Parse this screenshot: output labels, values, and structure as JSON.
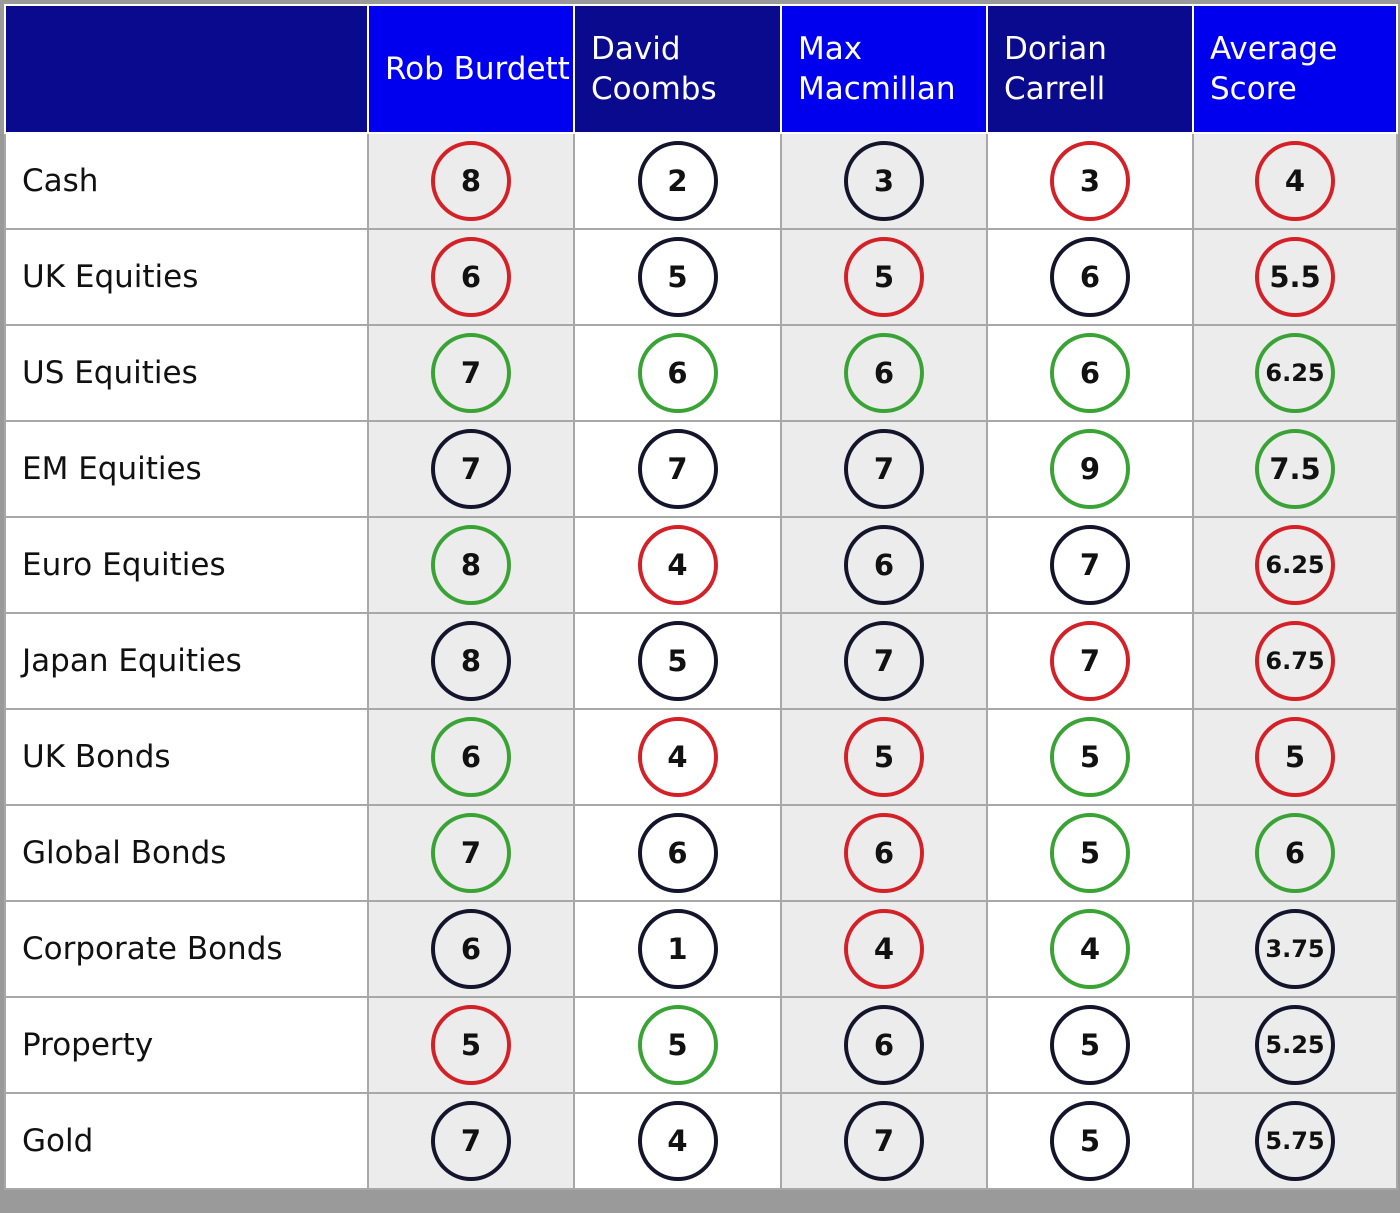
{
  "table": {
    "columns": [
      "Rob Burdett",
      "David Coombs",
      "Max Macmillan",
      "Dorian Carrell",
      "Average Score"
    ],
    "rows": [
      {
        "label": "Cash",
        "cells": [
          {
            "value": 8,
            "color": "#d42027"
          },
          {
            "value": 2,
            "color": "#14142b"
          },
          {
            "value": 3,
            "color": "#14142b"
          },
          {
            "value": 3,
            "color": "#d42027"
          },
          {
            "value": 4,
            "color": "#d42027"
          }
        ]
      },
      {
        "label": "UK Equities",
        "cells": [
          {
            "value": 6,
            "color": "#d42027"
          },
          {
            "value": 5,
            "color": "#14142b"
          },
          {
            "value": 5,
            "color": "#d42027"
          },
          {
            "value": 6,
            "color": "#14142b"
          },
          {
            "value": 5.5,
            "color": "#d42027"
          }
        ]
      },
      {
        "label": "US Equities",
        "cells": [
          {
            "value": 7,
            "color": "#3aa335"
          },
          {
            "value": 6,
            "color": "#3aa335"
          },
          {
            "value": 6,
            "color": "#3aa335"
          },
          {
            "value": 6,
            "color": "#3aa335"
          },
          {
            "value": 6.25,
            "color": "#3aa335"
          }
        ]
      },
      {
        "label": "EM Equities",
        "cells": [
          {
            "value": 7,
            "color": "#14142b"
          },
          {
            "value": 7,
            "color": "#14142b"
          },
          {
            "value": 7,
            "color": "#14142b"
          },
          {
            "value": 9,
            "color": "#3aa335"
          },
          {
            "value": 7.5,
            "color": "#3aa335"
          }
        ]
      },
      {
        "label": "Euro Equities",
        "cells": [
          {
            "value": 8,
            "color": "#3aa335"
          },
          {
            "value": 4,
            "color": "#d42027"
          },
          {
            "value": 6,
            "color": "#14142b"
          },
          {
            "value": 7,
            "color": "#14142b"
          },
          {
            "value": 6.25,
            "color": "#d42027"
          }
        ]
      },
      {
        "label": "Japan Equities",
        "cells": [
          {
            "value": 8,
            "color": "#14142b"
          },
          {
            "value": 5,
            "color": "#14142b"
          },
          {
            "value": 7,
            "color": "#14142b"
          },
          {
            "value": 7,
            "color": "#d42027"
          },
          {
            "value": 6.75,
            "color": "#d42027"
          }
        ]
      },
      {
        "label": "UK Bonds",
        "cells": [
          {
            "value": 6,
            "color": "#3aa335"
          },
          {
            "value": 4,
            "color": "#d42027"
          },
          {
            "value": 5,
            "color": "#d42027"
          },
          {
            "value": 5,
            "color": "#3aa335"
          },
          {
            "value": 5,
            "color": "#d42027"
          }
        ]
      },
      {
        "label": "Global Bonds",
        "cells": [
          {
            "value": 7,
            "color": "#3aa335"
          },
          {
            "value": 6,
            "color": "#14142b"
          },
          {
            "value": 6,
            "color": "#d42027"
          },
          {
            "value": 5,
            "color": "#3aa335"
          },
          {
            "value": 6,
            "color": "#3aa335"
          }
        ]
      },
      {
        "label": "Corporate Bonds",
        "cells": [
          {
            "value": 6,
            "color": "#14142b"
          },
          {
            "value": 1,
            "color": "#14142b"
          },
          {
            "value": 4,
            "color": "#d42027"
          },
          {
            "value": 4,
            "color": "#3aa335"
          },
          {
            "value": 3.75,
            "color": "#14142b"
          }
        ]
      },
      {
        "label": "Property",
        "cells": [
          {
            "value": 5,
            "color": "#d42027"
          },
          {
            "value": 5,
            "color": "#3aa335"
          },
          {
            "value": 6,
            "color": "#14142b"
          },
          {
            "value": 5,
            "color": "#14142b"
          },
          {
            "value": 5.25,
            "color": "#14142b"
          }
        ]
      },
      {
        "label": "Gold",
        "cells": [
          {
            "value": 7,
            "color": "#14142b"
          },
          {
            "value": 4,
            "color": "#14142b"
          },
          {
            "value": 7,
            "color": "#14142b"
          },
          {
            "value": 5,
            "color": "#14142b"
          },
          {
            "value": 5.75,
            "color": "#14142b"
          }
        ]
      }
    ]
  }
}
